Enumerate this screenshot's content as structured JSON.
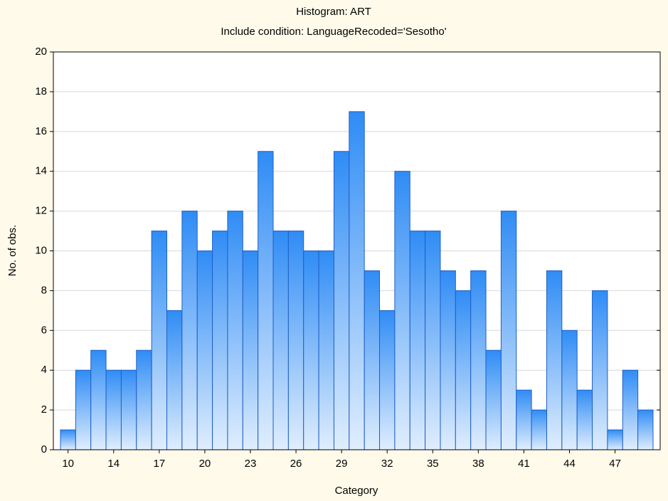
{
  "chart_data": {
    "type": "bar",
    "title": "Histogram: ART",
    "subtitle": "Include condition: LanguageRecoded='Sesotho'",
    "x_label": "Category",
    "y_label": "No. of obs.",
    "categories": [
      "10",
      null,
      null,
      "14",
      null,
      null,
      "17",
      null,
      null,
      "20",
      null,
      null,
      "23",
      null,
      null,
      "26",
      null,
      null,
      "29",
      null,
      null,
      "32",
      null,
      null,
      "35",
      null,
      null,
      "38",
      null,
      null,
      "41",
      null,
      null,
      "44",
      null,
      null,
      "47",
      null,
      null
    ],
    "values": [
      1,
      4,
      5,
      4,
      4,
      5,
      11,
      7,
      12,
      10,
      11,
      12,
      10,
      15,
      11,
      11,
      10,
      10,
      15,
      17,
      9,
      7,
      14,
      11,
      11,
      9,
      8,
      9,
      5,
      12,
      3,
      2,
      9,
      6,
      3,
      8,
      1,
      4,
      2
    ],
    "color": "#2f8cf5",
    "ylim": [
      0,
      20
    ],
    "yticks": [
      0,
      2,
      4,
      6,
      8,
      10,
      12,
      14,
      16,
      18,
      20
    ],
    "grid": true
  }
}
